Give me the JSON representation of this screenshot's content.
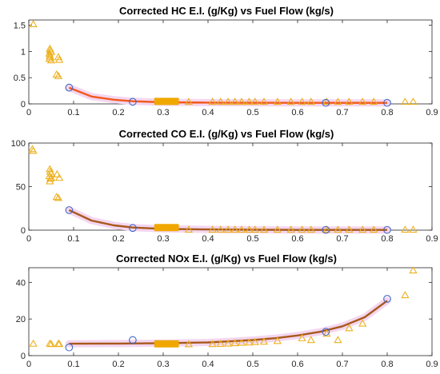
{
  "colors": {
    "axes": "#262626",
    "triangle": "#EDB120",
    "circle": "#4166C4",
    "fit_line_hc": "#F2591C",
    "fit_line": "#A7591B",
    "fit_halo": "#F4D6F0",
    "cluster_fill": "#F0A800"
  },
  "chart_data": [
    {
      "type": "scatter",
      "title": "Corrected HC E.I. (g/Kg) vs Fuel Flow (kg/s)",
      "xlim": [
        0,
        0.9
      ],
      "ylim": [
        0,
        1.6
      ],
      "x_ticks": [
        "0",
        "0.1",
        "0.2",
        "0.3",
        "0.4",
        "0.5",
        "0.6",
        "0.7",
        "0.8",
        "0.9"
      ],
      "y_ticks": [
        "0",
        "0.5",
        "1",
        "1.5"
      ],
      "y_tick_values": [
        0,
        0.5,
        1,
        1.5
      ],
      "grid": false,
      "triangles": [
        [
          0.01,
          1.52
        ],
        [
          0.047,
          1.05
        ],
        [
          0.048,
          1.02
        ],
        [
          0.05,
          0.99
        ],
        [
          0.046,
          0.96
        ],
        [
          0.047,
          0.92
        ],
        [
          0.048,
          0.89
        ],
        [
          0.046,
          0.86
        ],
        [
          0.05,
          0.83
        ],
        [
          0.066,
          0.89
        ],
        [
          0.068,
          0.84
        ],
        [
          0.062,
          0.56
        ],
        [
          0.066,
          0.53
        ],
        [
          0.357,
          0.04
        ],
        [
          0.41,
          0.04
        ],
        [
          0.428,
          0.04
        ],
        [
          0.445,
          0.04
        ],
        [
          0.46,
          0.04
        ],
        [
          0.475,
          0.04
        ],
        [
          0.492,
          0.04
        ],
        [
          0.505,
          0.04
        ],
        [
          0.525,
          0.04
        ],
        [
          0.555,
          0.04
        ],
        [
          0.585,
          0.04
        ],
        [
          0.61,
          0.04
        ],
        [
          0.63,
          0.04
        ],
        [
          0.665,
          0.04
        ],
        [
          0.69,
          0.04
        ],
        [
          0.715,
          0.04
        ],
        [
          0.745,
          0.04
        ],
        [
          0.77,
          0.04
        ],
        [
          0.84,
          0.04
        ],
        [
          0.858,
          0.04
        ]
      ],
      "cluster": {
        "x_range": [
          0.28,
          0.335
        ],
        "y": 0.04
      },
      "circles": [
        [
          0.09,
          0.31
        ],
        [
          0.232,
          0.04
        ],
        [
          0.663,
          0.02
        ],
        [
          0.8,
          0.02
        ]
      ],
      "fit_line": [
        [
          0.09,
          0.31
        ],
        [
          0.14,
          0.14
        ],
        [
          0.19,
          0.08
        ],
        [
          0.232,
          0.05
        ],
        [
          0.3,
          0.03
        ],
        [
          0.4,
          0.025
        ],
        [
          0.5,
          0.022
        ],
        [
          0.6,
          0.02
        ],
        [
          0.7,
          0.02
        ],
        [
          0.8,
          0.02
        ]
      ]
    },
    {
      "type": "scatter",
      "title": "Corrected CO E.I. (g/Kg) vs Fuel Flow (kg/s)",
      "xlim": [
        0,
        0.9
      ],
      "ylim": [
        0,
        100
      ],
      "x_ticks": [
        "0",
        "0.1",
        "0.2",
        "0.3",
        "0.4",
        "0.5",
        "0.6",
        "0.7",
        "0.8",
        "0.9"
      ],
      "y_ticks": [
        "0",
        "50",
        "100"
      ],
      "y_tick_values": [
        0,
        50,
        100
      ],
      "grid": false,
      "triangles": [
        [
          0.008,
          93
        ],
        [
          0.01,
          91
        ],
        [
          0.047,
          70
        ],
        [
          0.048,
          67
        ],
        [
          0.05,
          65
        ],
        [
          0.046,
          62
        ],
        [
          0.048,
          59
        ],
        [
          0.047,
          56
        ],
        [
          0.05,
          60
        ],
        [
          0.063,
          64
        ],
        [
          0.068,
          60
        ],
        [
          0.062,
          38
        ],
        [
          0.066,
          37
        ],
        [
          0.357,
          0.5
        ],
        [
          0.41,
          0.5
        ],
        [
          0.428,
          0.5
        ],
        [
          0.445,
          0.5
        ],
        [
          0.46,
          0.5
        ],
        [
          0.475,
          0.5
        ],
        [
          0.492,
          0.5
        ],
        [
          0.505,
          0.5
        ],
        [
          0.525,
          0.5
        ],
        [
          0.555,
          0.5
        ],
        [
          0.585,
          0.5
        ],
        [
          0.61,
          0.5
        ],
        [
          0.63,
          0.5
        ],
        [
          0.665,
          0.5
        ],
        [
          0.69,
          0.5
        ],
        [
          0.715,
          0.5
        ],
        [
          0.745,
          0.5
        ],
        [
          0.77,
          0.5
        ],
        [
          0.84,
          0.5
        ],
        [
          0.858,
          0.5
        ]
      ],
      "cluster": {
        "x_range": [
          0.28,
          0.335
        ],
        "y": 2.5
      },
      "circles": [
        [
          0.09,
          23
        ],
        [
          0.232,
          2.5
        ],
        [
          0.663,
          0.3
        ],
        [
          0.8,
          0.3
        ]
      ],
      "fit_line": [
        [
          0.09,
          23
        ],
        [
          0.14,
          11
        ],
        [
          0.19,
          5.5
        ],
        [
          0.232,
          3
        ],
        [
          0.3,
          1.5
        ],
        [
          0.4,
          0.8
        ],
        [
          0.5,
          0.5
        ],
        [
          0.6,
          0.3
        ],
        [
          0.7,
          0.3
        ],
        [
          0.8,
          0.3
        ]
      ]
    },
    {
      "type": "scatter",
      "title": "Corrected NOx E.I. (g/Kg) vs Fuel Flow (kg/s)",
      "xlim": [
        0,
        0.9
      ],
      "ylim": [
        0,
        48
      ],
      "x_ticks": [
        "0",
        "0.1",
        "0.2",
        "0.3",
        "0.4",
        "0.5",
        "0.6",
        "0.7",
        "0.8",
        "0.9"
      ],
      "y_ticks": [
        "0",
        "20",
        "40"
      ],
      "y_tick_values": [
        0,
        20,
        40
      ],
      "grid": false,
      "triangles": [
        [
          0.01,
          6.5
        ],
        [
          0.047,
          6.5
        ],
        [
          0.05,
          6.3
        ],
        [
          0.066,
          6.5
        ],
        [
          0.068,
          6.3
        ],
        [
          0.357,
          6.2
        ],
        [
          0.41,
          6.3
        ],
        [
          0.428,
          6.4
        ],
        [
          0.445,
          6.6
        ],
        [
          0.46,
          6.8
        ],
        [
          0.475,
          7.0
        ],
        [
          0.492,
          7.2
        ],
        [
          0.505,
          7.4
        ],
        [
          0.525,
          7.6
        ],
        [
          0.555,
          8.0
        ],
        [
          0.61,
          9.5
        ],
        [
          0.63,
          8.5
        ],
        [
          0.665,
          12
        ],
        [
          0.69,
          8.5
        ],
        [
          0.715,
          15
        ],
        [
          0.745,
          17.5
        ],
        [
          0.84,
          33
        ],
        [
          0.858,
          46.5
        ]
      ],
      "cluster": {
        "x_range": [
          0.28,
          0.335
        ],
        "y": 6.2
      },
      "circles": [
        [
          0.09,
          4.5
        ],
        [
          0.232,
          8.5
        ],
        [
          0.663,
          13
        ],
        [
          0.8,
          31
        ]
      ],
      "fit_line": [
        [
          0.09,
          6.5
        ],
        [
          0.2,
          6.6
        ],
        [
          0.3,
          6.8
        ],
        [
          0.4,
          7.2
        ],
        [
          0.45,
          7.8
        ],
        [
          0.5,
          8.5
        ],
        [
          0.55,
          9.5
        ],
        [
          0.6,
          11
        ],
        [
          0.65,
          13
        ],
        [
          0.7,
          16
        ],
        [
          0.75,
          21
        ],
        [
          0.8,
          30
        ]
      ]
    }
  ]
}
